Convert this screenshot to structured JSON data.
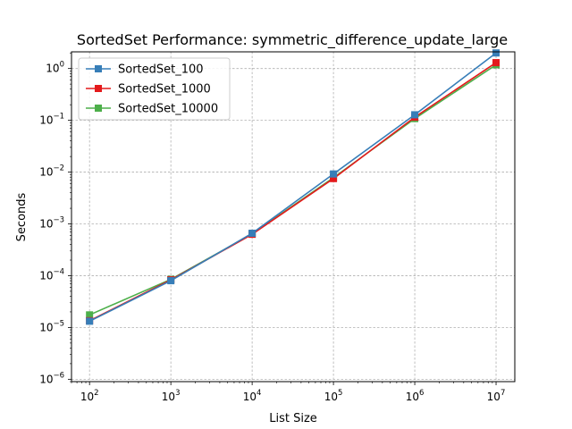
{
  "chart_data": {
    "type": "line",
    "title": "SortedSet Performance: symmetric_difference_update_large",
    "xlabel": "List Size",
    "ylabel": "Seconds",
    "x_scale": "log",
    "y_scale": "log",
    "xlim": [
      60,
      17000000
    ],
    "ylim": [
      9e-07,
      2.1
    ],
    "x_ticks": [
      {
        "value": 100,
        "base": "10",
        "exp": "2"
      },
      {
        "value": 1000,
        "base": "10",
        "exp": "3"
      },
      {
        "value": 10000,
        "base": "10",
        "exp": "4"
      },
      {
        "value": 100000,
        "base": "10",
        "exp": "5"
      },
      {
        "value": 1000000,
        "base": "10",
        "exp": "6"
      },
      {
        "value": 10000000,
        "base": "10",
        "exp": "7"
      }
    ],
    "y_ticks": [
      {
        "value": 1e-06,
        "base": "10",
        "exp": "−6"
      },
      {
        "value": 1e-05,
        "base": "10",
        "exp": "−5"
      },
      {
        "value": 0.0001,
        "base": "10",
        "exp": "−4"
      },
      {
        "value": 0.001,
        "base": "10",
        "exp": "−3"
      },
      {
        "value": 0.01,
        "base": "10",
        "exp": "−2"
      },
      {
        "value": 0.1,
        "base": "10",
        "exp": "−1"
      },
      {
        "value": 1,
        "base": "10",
        "exp": "0"
      }
    ],
    "grid": true,
    "legend_position": "top-left",
    "x": [
      100,
      1000,
      10000,
      100000,
      1000000,
      10000000
    ],
    "series": [
      {
        "name": "SortedSet_10000",
        "color": "#4daf4a",
        "marker": "square",
        "values": [
          1.75e-05,
          8.5e-05,
          0.00064,
          0.0078,
          0.108,
          1.18
        ]
      },
      {
        "name": "SortedSet_1000",
        "color": "#e41a1c",
        "marker": "square",
        "values": [
          1.35e-05,
          8.3e-05,
          0.00063,
          0.0075,
          0.115,
          1.3
        ]
      },
      {
        "name": "SortedSet_100",
        "color": "#377eb8",
        "marker": "square",
        "values": [
          1.32e-05,
          8e-05,
          0.00066,
          0.0092,
          0.128,
          2.0
        ]
      }
    ],
    "legend_order": [
      2,
      1,
      0
    ]
  }
}
